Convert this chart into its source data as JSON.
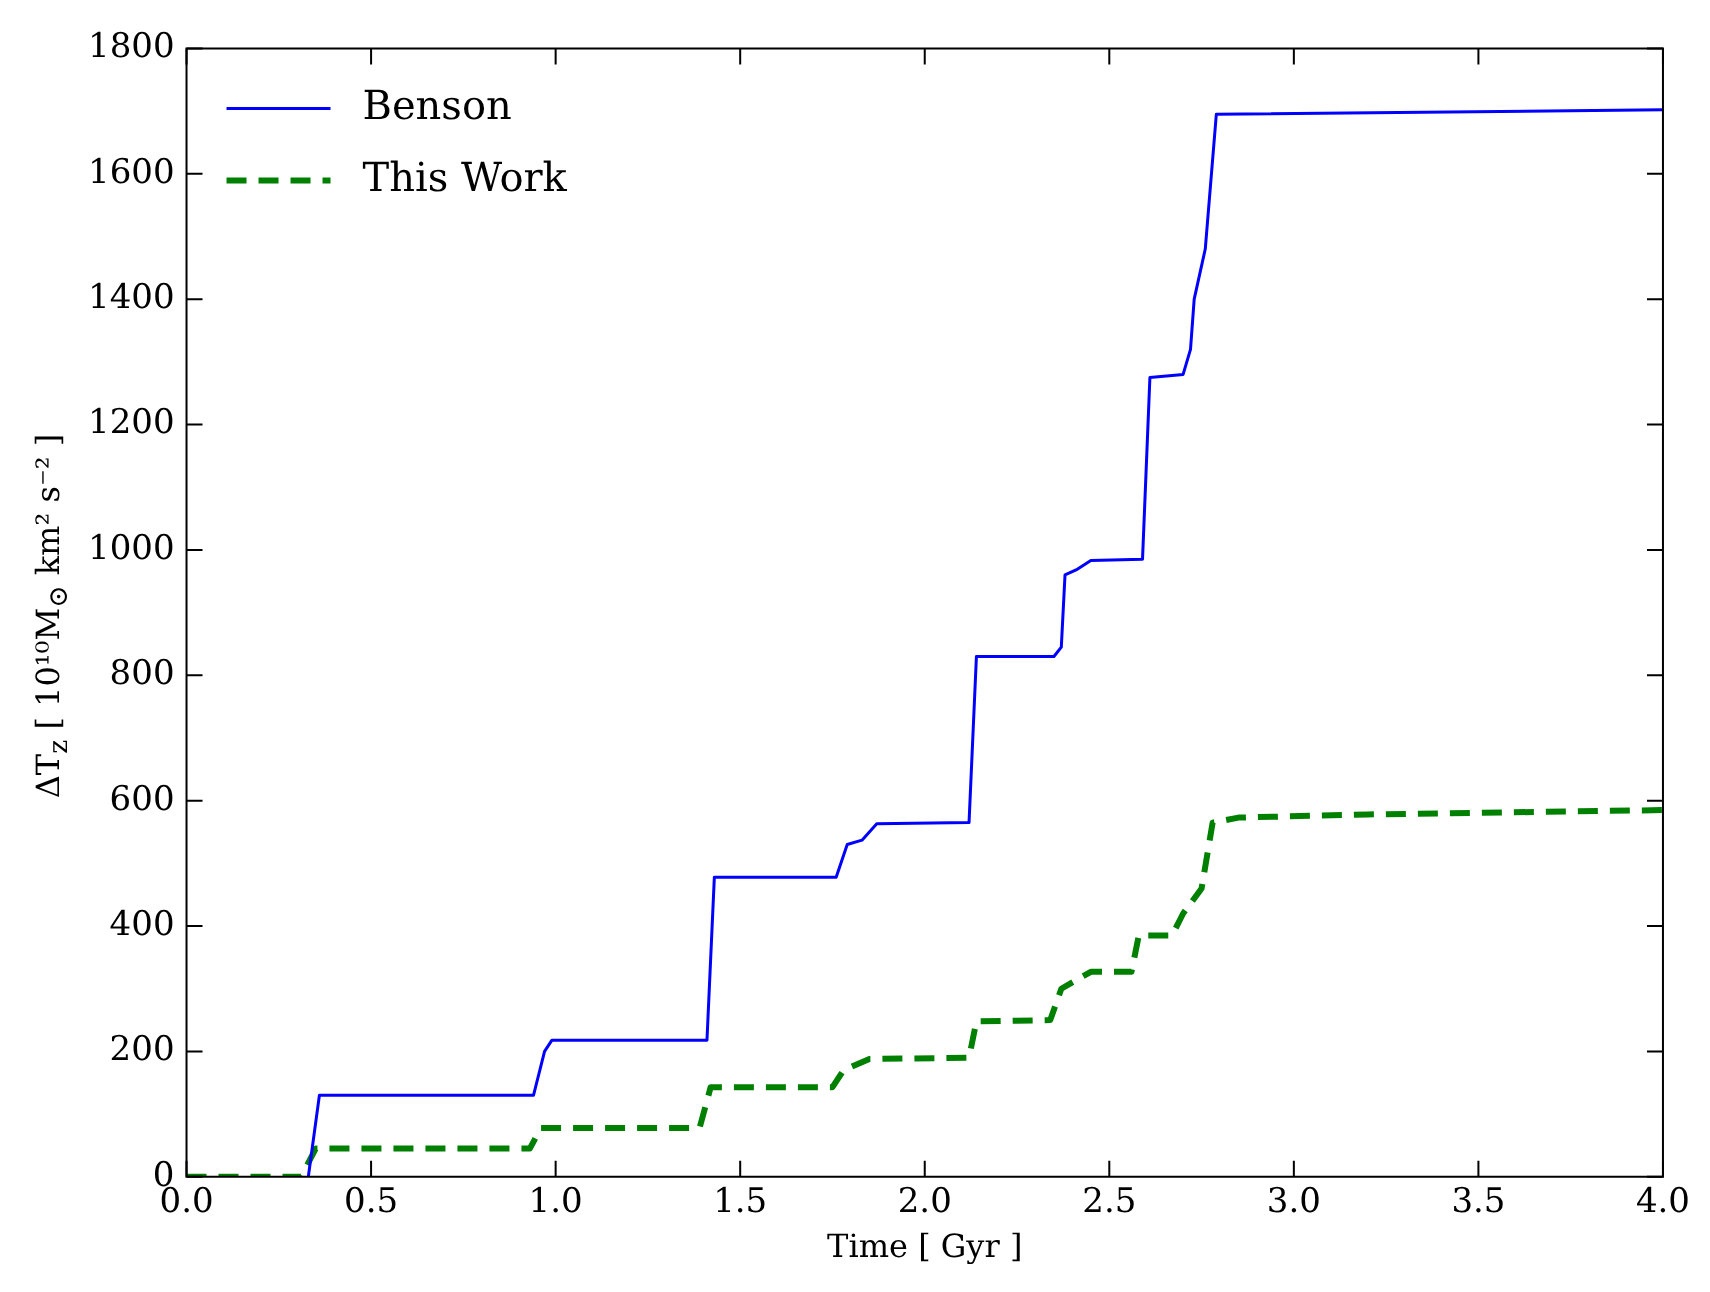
{
  "chart_data": {
    "type": "line",
    "xlabel": "Time [ Gyr ]",
    "ylabel": "ΔT$_{z}$ [ 10¹⁰M$_{⊙}$ km² s⁻² ]",
    "xlim": [
      0,
      4
    ],
    "xticks": [
      {
        "value": 0,
        "label": "0.0"
      },
      {
        "value": 0.5,
        "label": "0.5"
      },
      {
        "value": 1,
        "label": "1.0"
      },
      {
        "value": 1.5,
        "label": "1.5"
      },
      {
        "value": 2,
        "label": "2.0"
      },
      {
        "value": 2.5,
        "label": "2.5"
      },
      {
        "value": 3,
        "label": "3.0"
      },
      {
        "value": 3.5,
        "label": "3.5"
      },
      {
        "value": 4,
        "label": "4.0"
      }
    ],
    "ylim": [
      0,
      1800
    ],
    "yticks": [
      0,
      200,
      400,
      600,
      800,
      1000,
      1200,
      1400,
      1600,
      1800
    ],
    "grid": false,
    "legend": "top left",
    "marker": "none",
    "series": [
      {
        "name": "Benson",
        "color": "#0000ff",
        "line_style": "solid",
        "x": [
          0.33,
          0.36,
          0.94,
          0.97,
          0.99,
          1.41,
          1.43,
          1.76,
          1.79,
          1.83,
          1.87,
          2.12,
          2.14,
          2.35,
          2.37,
          2.38,
          2.41,
          2.45,
          2.59,
          2.61,
          2.7,
          2.72,
          2.73,
          2.76,
          2.79,
          4.0
        ],
        "values": [
          0,
          130,
          130,
          200,
          218,
          218,
          478,
          478,
          530,
          537,
          563,
          565,
          830,
          830,
          845,
          960,
          968,
          983,
          985,
          1275,
          1280,
          1320,
          1400,
          1480,
          1695,
          1702
        ]
      },
      {
        "name": "This Work",
        "color": "#008000",
        "line_style": "dashed",
        "x": [
          0,
          0.31,
          0.35,
          0.93,
          0.96,
          1.39,
          1.42,
          1.75,
          1.78,
          1.85,
          2.12,
          2.14,
          2.34,
          2.37,
          2.45,
          2.56,
          2.58,
          2.67,
          2.7,
          2.75,
          2.78,
          2.85,
          3.2,
          4.0
        ],
        "values": [
          0,
          0,
          45,
          45,
          78,
          78,
          143,
          143,
          170,
          188,
          190,
          248,
          250,
          300,
          327,
          327,
          385,
          385,
          420,
          460,
          565,
          573,
          578,
          585
        ]
      }
    ]
  }
}
